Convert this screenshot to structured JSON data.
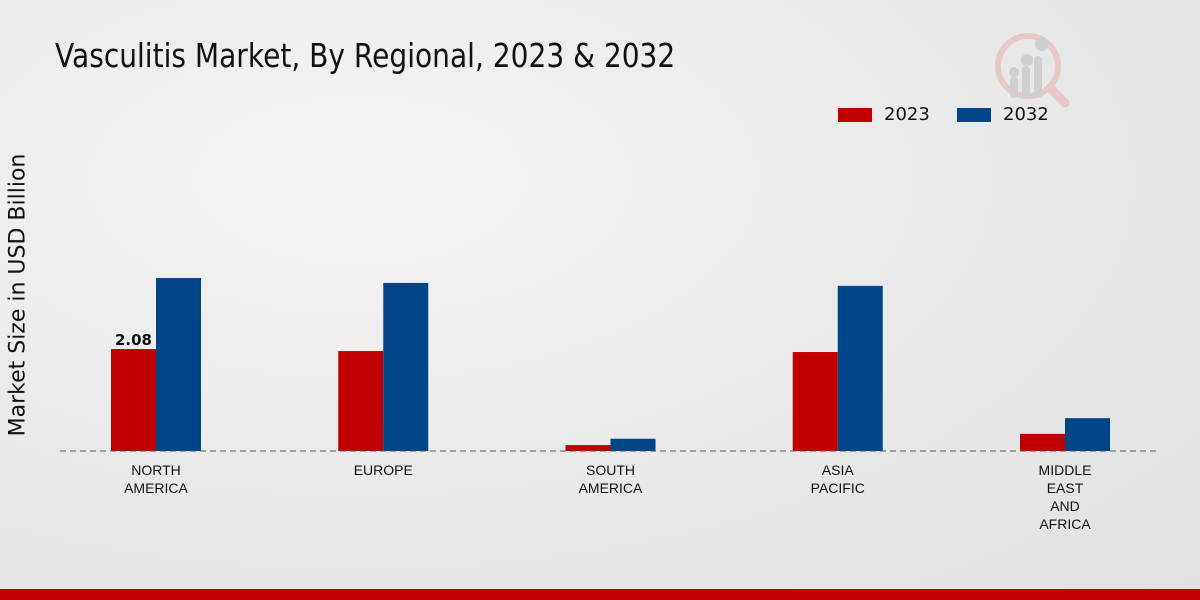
{
  "chart_data": {
    "type": "bar",
    "title": "Vasculitis Market, By Regional, 2023 & 2032",
    "xlabel": "",
    "ylabel": "Market Size in USD Billion",
    "categories": [
      [
        "NORTH",
        "AMERICA"
      ],
      [
        "EUROPE"
      ],
      [
        "SOUTH",
        "AMERICA"
      ],
      [
        "ASIA",
        "PACIFIC"
      ],
      [
        "MIDDLE",
        "EAST",
        "AND",
        "AFRICA"
      ]
    ],
    "series": [
      {
        "name": "2023",
        "color": "#c00000",
        "values": [
          2.08,
          2.04,
          0.12,
          2.02,
          0.35
        ]
      },
      {
        "name": "2032",
        "color": "#004587",
        "values": [
          3.53,
          3.43,
          0.25,
          3.37,
          0.67
        ]
      }
    ],
    "data_labels": [
      {
        "series": "2023",
        "category_index": 0,
        "text": "2.08"
      }
    ],
    "ylim": [
      0,
      8
    ],
    "grid": false,
    "legend_position": "top-right"
  }
}
